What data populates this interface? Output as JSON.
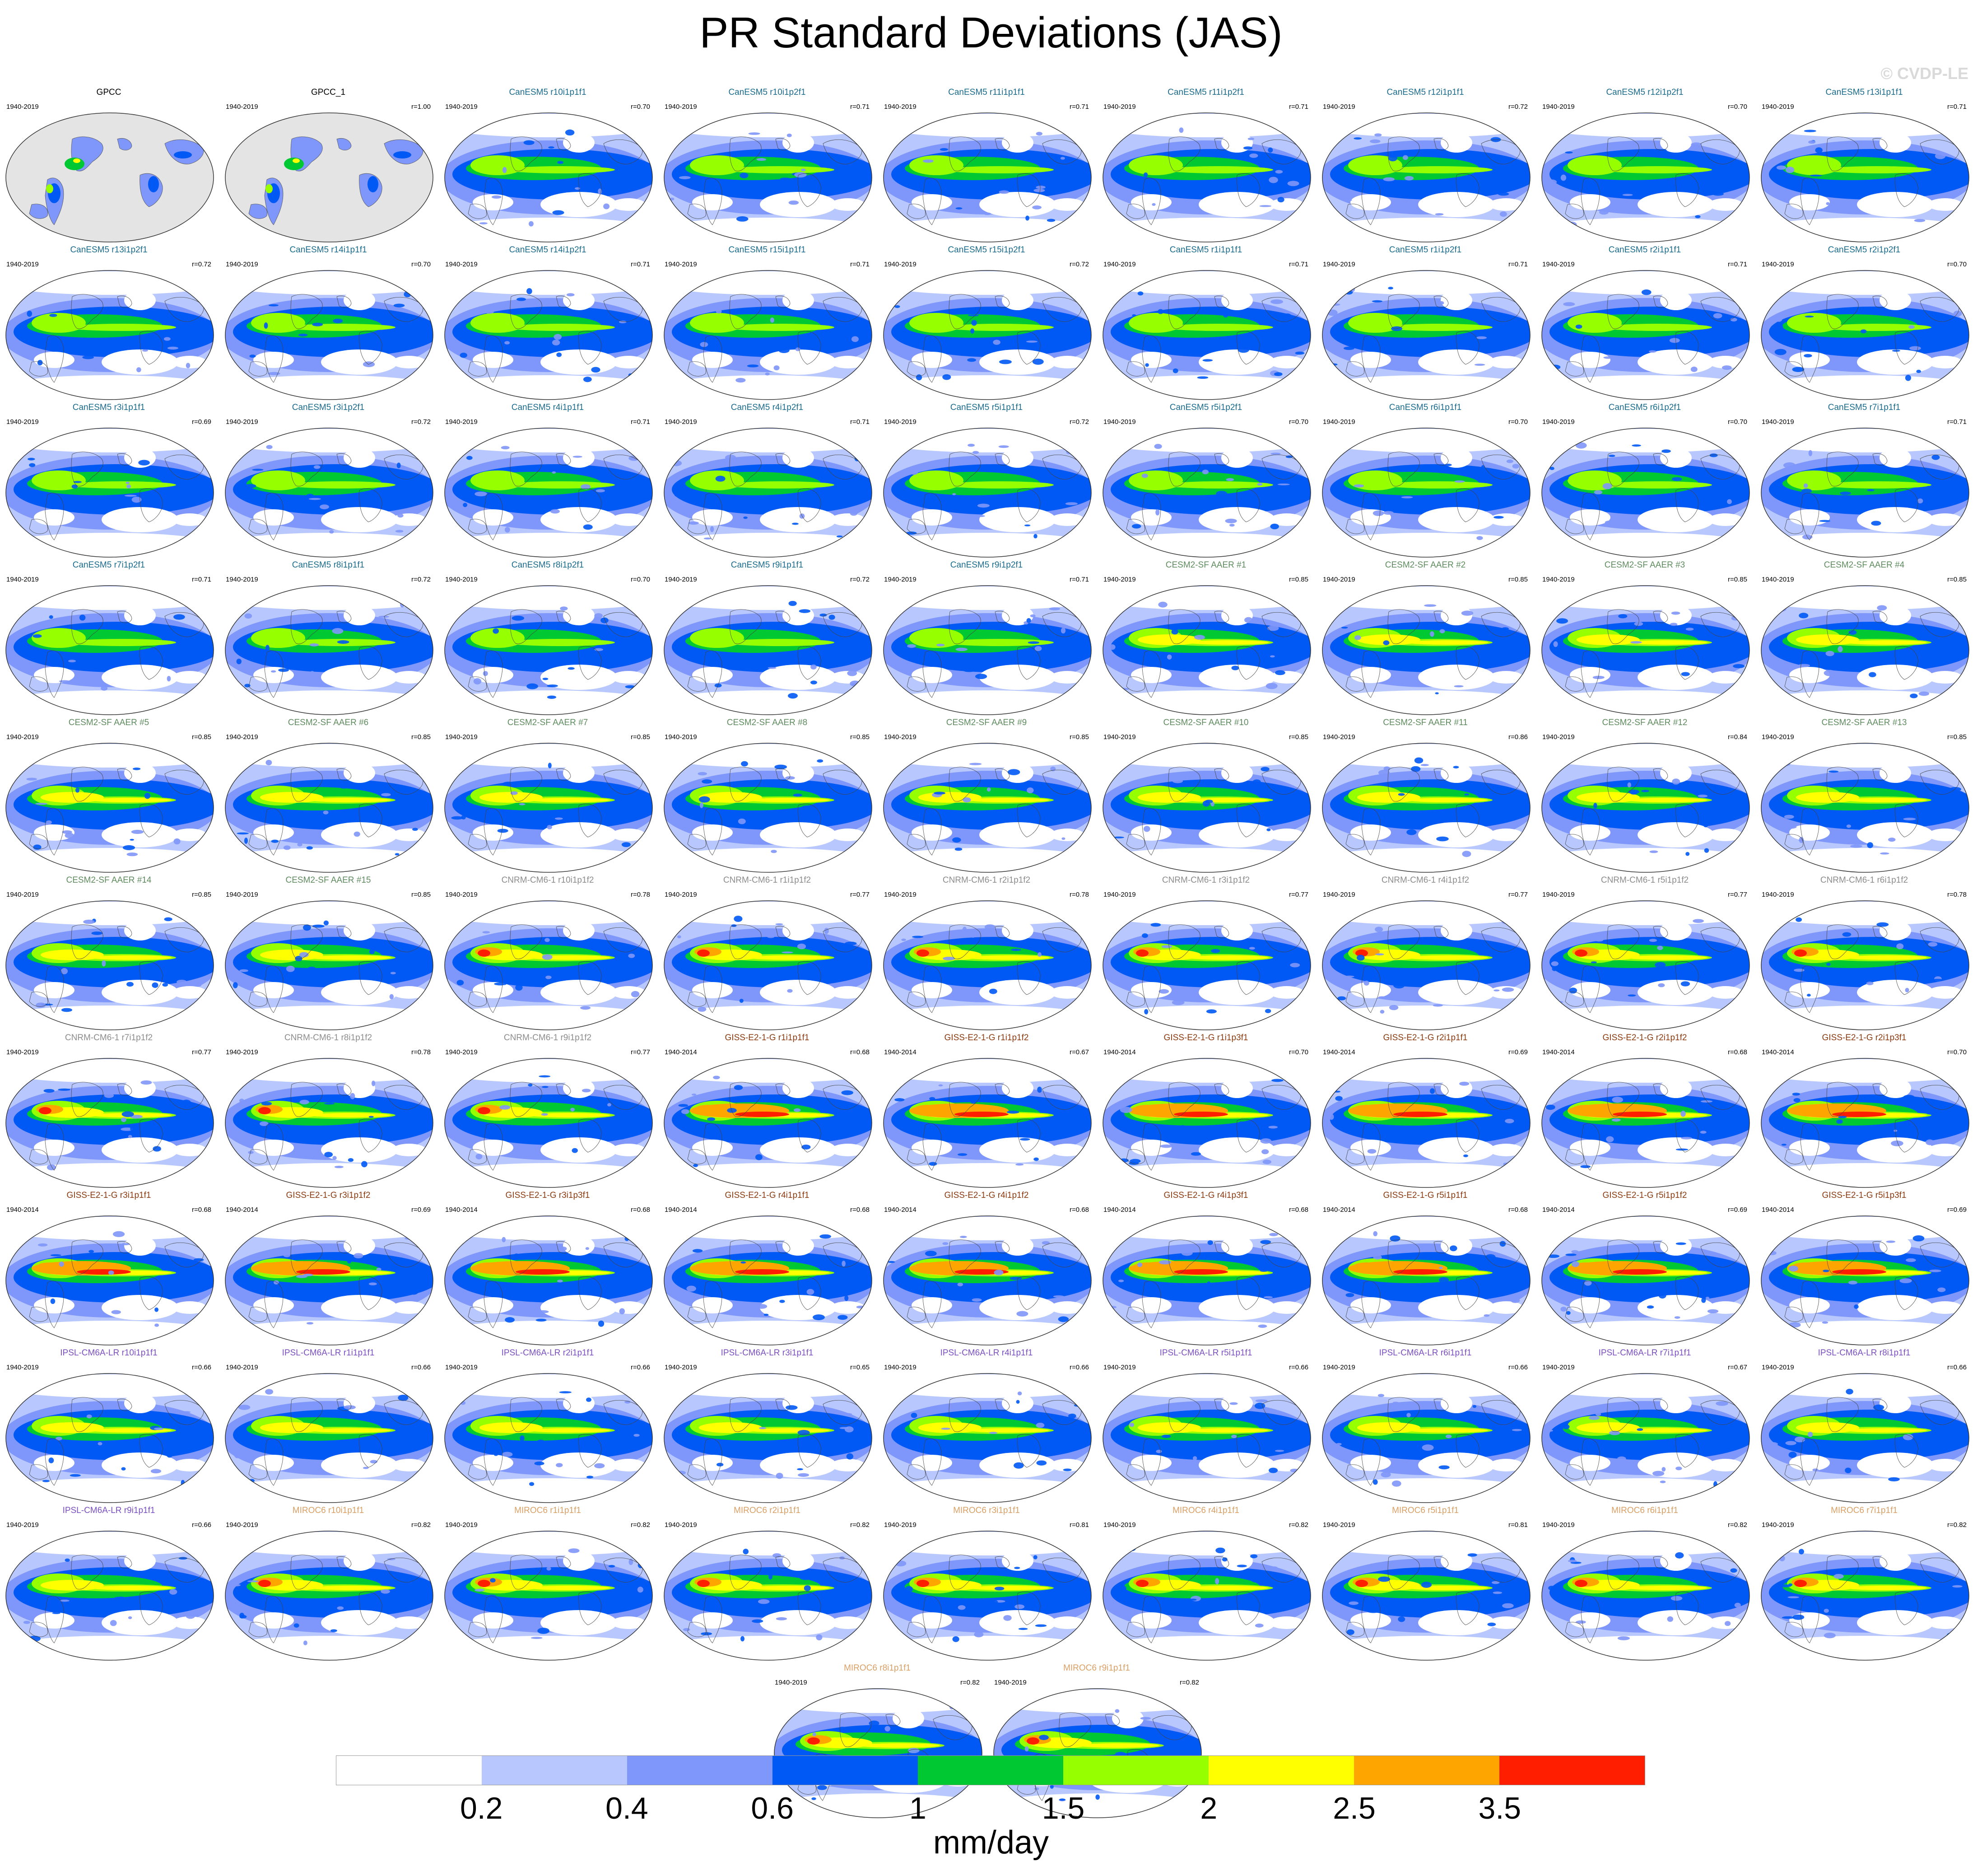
{
  "title": "PR Standard Deviations (JAS)",
  "credit": "© CVDP-LE",
  "chart_data": {
    "type": "heatmap",
    "title": "PR Standard Deviations (JAS)",
    "variable": "precipitation standard deviation",
    "season": "JAS",
    "map_projection": "Robinson, Pacific-centered",
    "units": "mm/day",
    "colorbar": {
      "levels": [
        "0.2",
        "0.4",
        "0.6",
        "1",
        "1.5",
        "2",
        "2.5",
        "3.5"
      ],
      "colors": [
        "#ffffff",
        "#b8c8ff",
        "#7f96fa",
        "#0059f5",
        "#00c832",
        "#96ff00",
        "#ffff00",
        "#ffa500",
        "#ff1e00"
      ]
    },
    "model_colors": {
      "GPCC": "#000000",
      "CanESM5": "#1a6b8c",
      "CESM2-SF AAER": "#5e8c5e",
      "CNRM-CM6-1": "#8c8c8c",
      "GISS-E2-1-G": "#8b3a0f",
      "IPSL-CM6A-LR": "#7a4fc0",
      "MIROC6": "#d9a066"
    },
    "panels": [
      {
        "name": "GPCC",
        "model": "GPCC",
        "period": "1940-2019",
        "r": ""
      },
      {
        "name": "GPCC_1",
        "model": "GPCC",
        "period": "1940-2019",
        "r": "r=1.00"
      },
      {
        "name": "CanESM5 r10i1p1f1",
        "model": "CanESM5",
        "period": "1940-2019",
        "r": "r=0.70"
      },
      {
        "name": "CanESM5 r10i1p2f1",
        "model": "CanESM5",
        "period": "1940-2019",
        "r": "r=0.71"
      },
      {
        "name": "CanESM5 r11i1p1f1",
        "model": "CanESM5",
        "period": "1940-2019",
        "r": "r=0.71"
      },
      {
        "name": "CanESM5 r11i1p2f1",
        "model": "CanESM5",
        "period": "1940-2019",
        "r": "r=0.71"
      },
      {
        "name": "CanESM5 r12i1p1f1",
        "model": "CanESM5",
        "period": "1940-2019",
        "r": "r=0.72"
      },
      {
        "name": "CanESM5 r12i1p2f1",
        "model": "CanESM5",
        "period": "1940-2019",
        "r": "r=0.70"
      },
      {
        "name": "CanESM5 r13i1p1f1",
        "model": "CanESM5",
        "period": "1940-2019",
        "r": "r=0.71"
      },
      {
        "name": "CanESM5 r13i1p2f1",
        "model": "CanESM5",
        "period": "1940-2019",
        "r": "r=0.72"
      },
      {
        "name": "CanESM5 r14i1p1f1",
        "model": "CanESM5",
        "period": "1940-2019",
        "r": "r=0.70"
      },
      {
        "name": "CanESM5 r14i1p2f1",
        "model": "CanESM5",
        "period": "1940-2019",
        "r": "r=0.71"
      },
      {
        "name": "CanESM5 r15i1p1f1",
        "model": "CanESM5",
        "period": "1940-2019",
        "r": "r=0.71"
      },
      {
        "name": "CanESM5 r15i1p2f1",
        "model": "CanESM5",
        "period": "1940-2019",
        "r": "r=0.72"
      },
      {
        "name": "CanESM5 r1i1p1f1",
        "model": "CanESM5",
        "period": "1940-2019",
        "r": "r=0.71"
      },
      {
        "name": "CanESM5 r1i1p2f1",
        "model": "CanESM5",
        "period": "1940-2019",
        "r": "r=0.71"
      },
      {
        "name": "CanESM5 r2i1p1f1",
        "model": "CanESM5",
        "period": "1940-2019",
        "r": "r=0.71"
      },
      {
        "name": "CanESM5 r2i1p2f1",
        "model": "CanESM5",
        "period": "1940-2019",
        "r": "r=0.70"
      },
      {
        "name": "CanESM5 r3i1p1f1",
        "model": "CanESM5",
        "period": "1940-2019",
        "r": "r=0.69"
      },
      {
        "name": "CanESM5 r3i1p2f1",
        "model": "CanESM5",
        "period": "1940-2019",
        "r": "r=0.72"
      },
      {
        "name": "CanESM5 r4i1p1f1",
        "model": "CanESM5",
        "period": "1940-2019",
        "r": "r=0.71"
      },
      {
        "name": "CanESM5 r4i1p2f1",
        "model": "CanESM5",
        "period": "1940-2019",
        "r": "r=0.71"
      },
      {
        "name": "CanESM5 r5i1p1f1",
        "model": "CanESM5",
        "period": "1940-2019",
        "r": "r=0.72"
      },
      {
        "name": "CanESM5 r5i1p2f1",
        "model": "CanESM5",
        "period": "1940-2019",
        "r": "r=0.70"
      },
      {
        "name": "CanESM5 r6i1p1f1",
        "model": "CanESM5",
        "period": "1940-2019",
        "r": "r=0.70"
      },
      {
        "name": "CanESM5 r6i1p2f1",
        "model": "CanESM5",
        "period": "1940-2019",
        "r": "r=0.70"
      },
      {
        "name": "CanESM5 r7i1p1f1",
        "model": "CanESM5",
        "period": "1940-2019",
        "r": "r=0.71"
      },
      {
        "name": "CanESM5 r7i1p2f1",
        "model": "CanESM5",
        "period": "1940-2019",
        "r": "r=0.71"
      },
      {
        "name": "CanESM5 r8i1p1f1",
        "model": "CanESM5",
        "period": "1940-2019",
        "r": "r=0.72"
      },
      {
        "name": "CanESM5 r8i1p2f1",
        "model": "CanESM5",
        "period": "1940-2019",
        "r": "r=0.70"
      },
      {
        "name": "CanESM5 r9i1p1f1",
        "model": "CanESM5",
        "period": "1940-2019",
        "r": "r=0.72"
      },
      {
        "name": "CanESM5 r9i1p2f1",
        "model": "CanESM5",
        "period": "1940-2019",
        "r": "r=0.71"
      },
      {
        "name": "CESM2-SF AAER #1",
        "model": "CESM2-SF AAER",
        "period": "1940-2019",
        "r": "r=0.85"
      },
      {
        "name": "CESM2-SF AAER #2",
        "model": "CESM2-SF AAER",
        "period": "1940-2019",
        "r": "r=0.85"
      },
      {
        "name": "CESM2-SF AAER #3",
        "model": "CESM2-SF AAER",
        "period": "1940-2019",
        "r": "r=0.85"
      },
      {
        "name": "CESM2-SF AAER #4",
        "model": "CESM2-SF AAER",
        "period": "1940-2019",
        "r": "r=0.85"
      },
      {
        "name": "CESM2-SF AAER #5",
        "model": "CESM2-SF AAER",
        "period": "1940-2019",
        "r": "r=0.85"
      },
      {
        "name": "CESM2-SF AAER #6",
        "model": "CESM2-SF AAER",
        "period": "1940-2019",
        "r": "r=0.85"
      },
      {
        "name": "CESM2-SF AAER #7",
        "model": "CESM2-SF AAER",
        "period": "1940-2019",
        "r": "r=0.85"
      },
      {
        "name": "CESM2-SF AAER #8",
        "model": "CESM2-SF AAER",
        "period": "1940-2019",
        "r": "r=0.85"
      },
      {
        "name": "CESM2-SF AAER #9",
        "model": "CESM2-SF AAER",
        "period": "1940-2019",
        "r": "r=0.85"
      },
      {
        "name": "CESM2-SF AAER #10",
        "model": "CESM2-SF AAER",
        "period": "1940-2019",
        "r": "r=0.85"
      },
      {
        "name": "CESM2-SF AAER #11",
        "model": "CESM2-SF AAER",
        "period": "1940-2019",
        "r": "r=0.86"
      },
      {
        "name": "CESM2-SF AAER #12",
        "model": "CESM2-SF AAER",
        "period": "1940-2019",
        "r": "r=0.84"
      },
      {
        "name": "CESM2-SF AAER #13",
        "model": "CESM2-SF AAER",
        "period": "1940-2019",
        "r": "r=0.85"
      },
      {
        "name": "CESM2-SF AAER #14",
        "model": "CESM2-SF AAER",
        "period": "1940-2019",
        "r": "r=0.85"
      },
      {
        "name": "CESM2-SF AAER #15",
        "model": "CESM2-SF AAER",
        "period": "1940-2019",
        "r": "r=0.85"
      },
      {
        "name": "CNRM-CM6-1 r10i1p1f2",
        "model": "CNRM-CM6-1",
        "period": "1940-2019",
        "r": "r=0.78"
      },
      {
        "name": "CNRM-CM6-1 r1i1p1f2",
        "model": "CNRM-CM6-1",
        "period": "1940-2019",
        "r": "r=0.77"
      },
      {
        "name": "CNRM-CM6-1 r2i1p1f2",
        "model": "CNRM-CM6-1",
        "period": "1940-2019",
        "r": "r=0.78"
      },
      {
        "name": "CNRM-CM6-1 r3i1p1f2",
        "model": "CNRM-CM6-1",
        "period": "1940-2019",
        "r": "r=0.77"
      },
      {
        "name": "CNRM-CM6-1 r4i1p1f2",
        "model": "CNRM-CM6-1",
        "period": "1940-2019",
        "r": "r=0.77"
      },
      {
        "name": "CNRM-CM6-1 r5i1p1f2",
        "model": "CNRM-CM6-1",
        "period": "1940-2019",
        "r": "r=0.77"
      },
      {
        "name": "CNRM-CM6-1 r6i1p1f2",
        "model": "CNRM-CM6-1",
        "period": "1940-2019",
        "r": "r=0.78"
      },
      {
        "name": "CNRM-CM6-1 r7i1p1f2",
        "model": "CNRM-CM6-1",
        "period": "1940-2019",
        "r": "r=0.77"
      },
      {
        "name": "CNRM-CM6-1 r8i1p1f2",
        "model": "CNRM-CM6-1",
        "period": "1940-2019",
        "r": "r=0.78"
      },
      {
        "name": "CNRM-CM6-1 r9i1p1f2",
        "model": "CNRM-CM6-1",
        "period": "1940-2019",
        "r": "r=0.77"
      },
      {
        "name": "GISS-E2-1-G r1i1p1f1",
        "model": "GISS-E2-1-G",
        "period": "1940-2014",
        "r": "r=0.68"
      },
      {
        "name": "GISS-E2-1-G r1i1p1f2",
        "model": "GISS-E2-1-G",
        "period": "1940-2014",
        "r": "r=0.67"
      },
      {
        "name": "GISS-E2-1-G r1i1p3f1",
        "model": "GISS-E2-1-G",
        "period": "1940-2014",
        "r": "r=0.70"
      },
      {
        "name": "GISS-E2-1-G r2i1p1f1",
        "model": "GISS-E2-1-G",
        "period": "1940-2014",
        "r": "r=0.69"
      },
      {
        "name": "GISS-E2-1-G r2i1p1f2",
        "model": "GISS-E2-1-G",
        "period": "1940-2014",
        "r": "r=0.68"
      },
      {
        "name": "GISS-E2-1-G r2i1p3f1",
        "model": "GISS-E2-1-G",
        "period": "1940-2014",
        "r": "r=0.70"
      },
      {
        "name": "GISS-E2-1-G r3i1p1f1",
        "model": "GISS-E2-1-G",
        "period": "1940-2014",
        "r": "r=0.68"
      },
      {
        "name": "GISS-E2-1-G r3i1p1f2",
        "model": "GISS-E2-1-G",
        "period": "1940-2014",
        "r": "r=0.69"
      },
      {
        "name": "GISS-E2-1-G r3i1p3f1",
        "model": "GISS-E2-1-G",
        "period": "1940-2014",
        "r": "r=0.68"
      },
      {
        "name": "GISS-E2-1-G r4i1p1f1",
        "model": "GISS-E2-1-G",
        "period": "1940-2014",
        "r": "r=0.68"
      },
      {
        "name": "GISS-E2-1-G r4i1p1f2",
        "model": "GISS-E2-1-G",
        "period": "1940-2014",
        "r": "r=0.68"
      },
      {
        "name": "GISS-E2-1-G r4i1p3f1",
        "model": "GISS-E2-1-G",
        "period": "1940-2014",
        "r": "r=0.68"
      },
      {
        "name": "GISS-E2-1-G r5i1p1f1",
        "model": "GISS-E2-1-G",
        "period": "1940-2014",
        "r": "r=0.68"
      },
      {
        "name": "GISS-E2-1-G r5i1p1f2",
        "model": "GISS-E2-1-G",
        "period": "1940-2014",
        "r": "r=0.69"
      },
      {
        "name": "GISS-E2-1-G r5i1p3f1",
        "model": "GISS-E2-1-G",
        "period": "1940-2014",
        "r": "r=0.69"
      },
      {
        "name": "IPSL-CM6A-LR r10i1p1f1",
        "model": "IPSL-CM6A-LR",
        "period": "1940-2019",
        "r": "r=0.66"
      },
      {
        "name": "IPSL-CM6A-LR r1i1p1f1",
        "model": "IPSL-CM6A-LR",
        "period": "1940-2019",
        "r": "r=0.66"
      },
      {
        "name": "IPSL-CM6A-LR r2i1p1f1",
        "model": "IPSL-CM6A-LR",
        "period": "1940-2019",
        "r": "r=0.66"
      },
      {
        "name": "IPSL-CM6A-LR r3i1p1f1",
        "model": "IPSL-CM6A-LR",
        "period": "1940-2019",
        "r": "r=0.65"
      },
      {
        "name": "IPSL-CM6A-LR r4i1p1f1",
        "model": "IPSL-CM6A-LR",
        "period": "1940-2019",
        "r": "r=0.66"
      },
      {
        "name": "IPSL-CM6A-LR r5i1p1f1",
        "model": "IPSL-CM6A-LR",
        "period": "1940-2019",
        "r": "r=0.66"
      },
      {
        "name": "IPSL-CM6A-LR r6i1p1f1",
        "model": "IPSL-CM6A-LR",
        "period": "1940-2019",
        "r": "r=0.66"
      },
      {
        "name": "IPSL-CM6A-LR r7i1p1f1",
        "model": "IPSL-CM6A-LR",
        "period": "1940-2019",
        "r": "r=0.67"
      },
      {
        "name": "IPSL-CM6A-LR r8i1p1f1",
        "model": "IPSL-CM6A-LR",
        "period": "1940-2019",
        "r": "r=0.66"
      },
      {
        "name": "IPSL-CM6A-LR r9i1p1f1",
        "model": "IPSL-CM6A-LR",
        "period": "1940-2019",
        "r": "r=0.66"
      },
      {
        "name": "MIROC6 r10i1p1f1",
        "model": "MIROC6",
        "period": "1940-2019",
        "r": "r=0.82"
      },
      {
        "name": "MIROC6 r1i1p1f1",
        "model": "MIROC6",
        "period": "1940-2019",
        "r": "r=0.82"
      },
      {
        "name": "MIROC6 r2i1p1f1",
        "model": "MIROC6",
        "period": "1940-2019",
        "r": "r=0.82"
      },
      {
        "name": "MIROC6 r3i1p1f1",
        "model": "MIROC6",
        "period": "1940-2019",
        "r": "r=0.81"
      },
      {
        "name": "MIROC6 r4i1p1f1",
        "model": "MIROC6",
        "period": "1940-2019",
        "r": "r=0.82"
      },
      {
        "name": "MIROC6 r5i1p1f1",
        "model": "MIROC6",
        "period": "1940-2019",
        "r": "r=0.81"
      },
      {
        "name": "MIROC6 r6i1p1f1",
        "model": "MIROC6",
        "period": "1940-2019",
        "r": "r=0.82"
      },
      {
        "name": "MIROC6 r7i1p1f1",
        "model": "MIROC6",
        "period": "1940-2019",
        "r": "r=0.82"
      },
      {
        "name": "MIROC6 r8i1p1f1",
        "model": "MIROC6",
        "period": "1940-2019",
        "r": "r=0.82"
      },
      {
        "name": "MIROC6 r9i1p1f1",
        "model": "MIROC6",
        "period": "1940-2019",
        "r": "r=0.82"
      }
    ]
  }
}
